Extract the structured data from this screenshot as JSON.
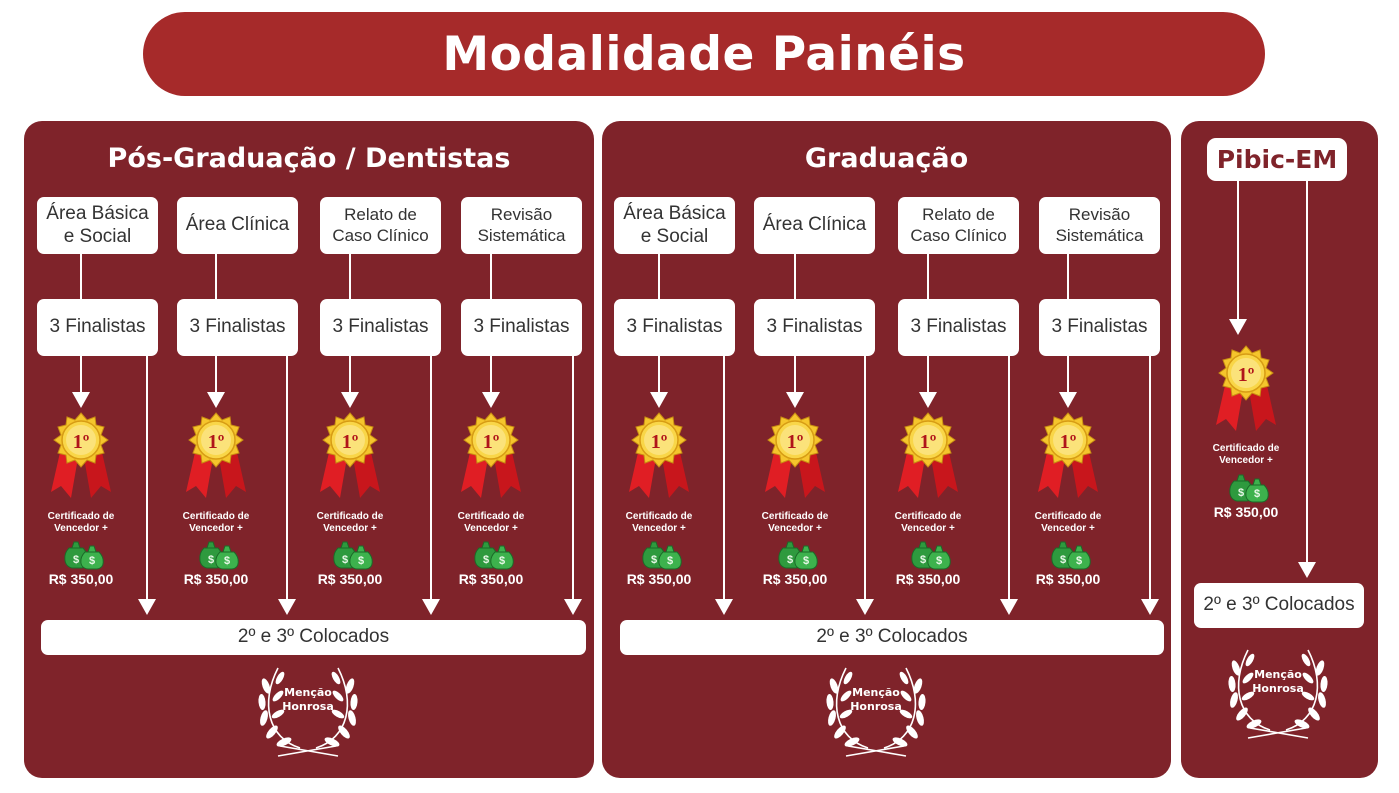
{
  "title": "Modalidade Painéis",
  "panels": [
    {
      "title": "Pós-Graduação / Dentistas",
      "categories": [
        {
          "line1": "Área Básica",
          "line2": "e Social",
          "finalists": "3 Finalistas"
        },
        {
          "line1": "Área Clínica",
          "line2": "",
          "finalists": "3 Finalistas"
        },
        {
          "line1": "Relato de",
          "line2": "Caso Clínico",
          "finalists": "3 Finalistas"
        },
        {
          "line1": "Revisão",
          "line2": "Sistemática",
          "finalists": "3 Finalistas"
        }
      ],
      "placed": "2º e 3º Colocados",
      "honor": {
        "line1": "Menção",
        "line2": "Honrosa"
      }
    },
    {
      "title": "Graduação",
      "categories": [
        {
          "line1": "Área Básica",
          "line2": "e Social",
          "finalists": "3 Finalistas"
        },
        {
          "line1": "Área Clínica",
          "line2": "",
          "finalists": "3 Finalistas"
        },
        {
          "line1": "Relato de",
          "line2": "Caso Clínico",
          "finalists": "3 Finalistas"
        },
        {
          "line1": "Revisão",
          "line2": "Sistemática",
          "finalists": "3 Finalistas"
        }
      ],
      "placed": "2º e 3º Colocados",
      "honor": {
        "line1": "Menção",
        "line2": "Honrosa"
      }
    },
    {
      "title": "Pibic-EM",
      "placed": "2º e 3º Colocados",
      "honor": {
        "line1": "Menção",
        "line2": "Honrosa"
      }
    }
  ],
  "prize": {
    "medal": "1º",
    "cert_line1": "Certificado de",
    "cert_line2": "Vencedor +",
    "amount": "R$ 350,00",
    "medal_icon": "first-place-medal-icon",
    "money_icon": "money-bags-icon"
  },
  "colors": {
    "title_bar": "#a62a2a",
    "panel": "#7f232a",
    "gold": "#f2c12e",
    "ribbon": "#e01e24",
    "money": "#2e9a3e"
  }
}
